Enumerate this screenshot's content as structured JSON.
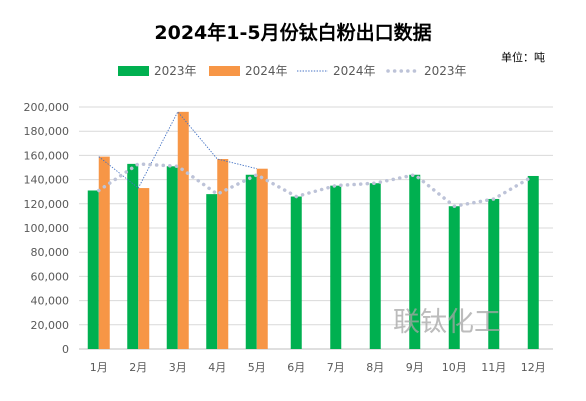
{
  "chart_data": {
    "type": "bar",
    "title": "2024年1-5月份钛白粉出口数据",
    "unit_label": "单位：吨",
    "watermark": "联钛化工",
    "categories": [
      "1月",
      "2月",
      "3月",
      "4月",
      "5月",
      "6月",
      "7月",
      "8月",
      "9月",
      "10月",
      "11月",
      "12月"
    ],
    "ylim": [
      0,
      200000
    ],
    "yticks": [
      "0",
      "20,000",
      "40,000",
      "60,000",
      "80,000",
      "100,000",
      "120,000",
      "140,000",
      "160,000",
      "180,000",
      "200,000"
    ],
    "grid": true,
    "legend_position": "top",
    "series": [
      {
        "name": "2023年",
        "kind": "bar",
        "color": "#00b050",
        "values": [
          131000,
          153000,
          151000,
          128000,
          144000,
          126000,
          135000,
          137000,
          144000,
          118000,
          124000,
          143000
        ]
      },
      {
        "name": "2024年",
        "kind": "bar",
        "color": "#f79646",
        "values": [
          159000,
          133000,
          196000,
          157000,
          149000,
          null,
          null,
          null,
          null,
          null,
          null,
          null
        ]
      },
      {
        "name": "2024年",
        "kind": "line",
        "style": "thin-dotted",
        "color": "#4472c4",
        "values": [
          159000,
          133000,
          196000,
          157000,
          149000,
          null,
          null,
          null,
          null,
          null,
          null,
          null
        ]
      },
      {
        "name": "2023年",
        "kind": "line",
        "style": "round-dotted",
        "color": "#bdc3d8",
        "values": [
          131000,
          153000,
          151000,
          128000,
          144000,
          126000,
          135000,
          137000,
          144000,
          118000,
          124000,
          143000
        ]
      }
    ]
  }
}
